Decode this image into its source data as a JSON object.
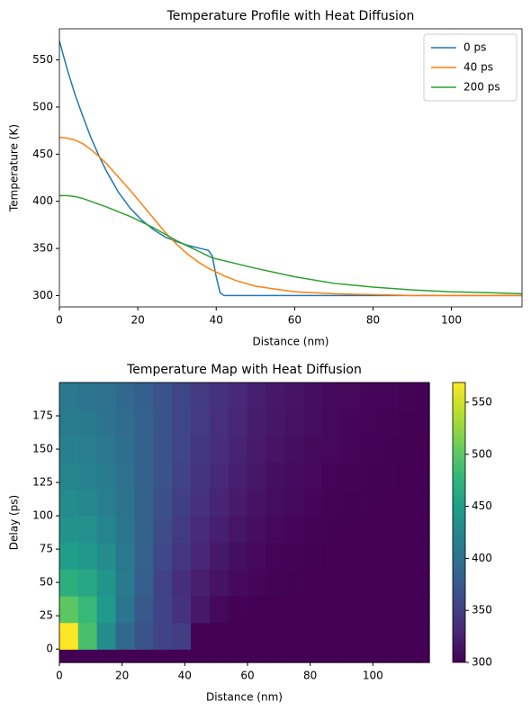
{
  "chart_data": [
    {
      "type": "line",
      "title": "Temperature Profile with Heat Diffusion",
      "x_label": "Distance (nm)",
      "y_label": "Temperature (K)",
      "x": [
        0,
        2,
        4,
        6,
        8,
        10,
        12,
        15,
        18,
        21,
        24,
        27,
        30,
        33,
        36,
        38,
        39,
        40,
        41,
        42,
        45,
        50,
        60,
        70,
        80,
        90,
        100,
        110,
        118
      ],
      "series": [
        {
          "name": "0 ps",
          "color": "#1f77b4",
          "values": [
            570,
            540,
            513,
            490,
            468,
            449,
            432,
            410,
            393,
            380,
            370,
            362,
            357,
            353,
            350,
            348,
            342,
            320,
            303,
            300,
            300,
            300,
            300,
            300,
            300,
            300,
            300,
            300,
            300
          ]
        },
        {
          "name": "40 ps",
          "color": "#ff7f0e",
          "values": [
            468,
            467,
            465,
            461,
            455,
            448,
            440,
            426,
            412,
            397,
            382,
            367,
            354,
            343,
            334,
            329,
            327,
            325,
            323,
            321,
            316,
            310,
            304,
            302,
            301,
            300,
            300,
            300,
            300
          ]
        },
        {
          "name": "200 ps",
          "color": "#2ca02c",
          "values": [
            406,
            406,
            405,
            403,
            400,
            397,
            394,
            389,
            384,
            378,
            372,
            365,
            358,
            352,
            346,
            342,
            340,
            339,
            338,
            337,
            334,
            329,
            320,
            313,
            309,
            306,
            304,
            303,
            302
          ]
        }
      ],
      "xlim": [
        0,
        118
      ],
      "ylim": [
        288,
        583
      ],
      "xticks": [
        0,
        20,
        40,
        60,
        80,
        100
      ],
      "yticks": [
        300,
        350,
        400,
        450,
        500,
        550
      ],
      "legend": "upper right"
    },
    {
      "type": "heatmap",
      "title": "Temperature Map with Heat Diffusion",
      "x_label": "Distance (nm)",
      "y_label": "Delay (ps)",
      "colormap": "viridis",
      "x": [
        0,
        6,
        12,
        18,
        24,
        30,
        36,
        42,
        48,
        54,
        60,
        66,
        72,
        78,
        84,
        90,
        96,
        102,
        108,
        114
      ],
      "y": [
        -10,
        0,
        20,
        40,
        60,
        80,
        100,
        120,
        140,
        160,
        180
      ],
      "z": [
        [
          300,
          300,
          300,
          300,
          300,
          300,
          300,
          300,
          300,
          300,
          300,
          300,
          300,
          300,
          300,
          300,
          300,
          300,
          300,
          300
        ],
        [
          570,
          490,
          430,
          390,
          368,
          355,
          350,
          300,
          300,
          300,
          300,
          300,
          300,
          300,
          300,
          300,
          300,
          300,
          300,
          300
        ],
        [
          500,
          480,
          445,
          405,
          375,
          355,
          338,
          318,
          306,
          301,
          300,
          300,
          300,
          300,
          300,
          300,
          300,
          300,
          300,
          300
        ],
        [
          468,
          460,
          440,
          410,
          380,
          355,
          335,
          322,
          313,
          307,
          304,
          302,
          301,
          300,
          300,
          300,
          300,
          300,
          300,
          300
        ],
        [
          450,
          444,
          430,
          408,
          383,
          360,
          342,
          328,
          318,
          311,
          306,
          303,
          302,
          301,
          300,
          300,
          300,
          300,
          300,
          300
        ],
        [
          438,
          434,
          422,
          405,
          385,
          364,
          347,
          333,
          323,
          315,
          310,
          306,
          304,
          302,
          301,
          300,
          300,
          300,
          300,
          300
        ],
        [
          430,
          426,
          416,
          402,
          385,
          367,
          351,
          338,
          327,
          319,
          313,
          309,
          306,
          304,
          302,
          301,
          301,
          300,
          300,
          300
        ],
        [
          423,
          420,
          411,
          400,
          385,
          369,
          354,
          341,
          331,
          323,
          316,
          311,
          308,
          305,
          303,
          302,
          301,
          301,
          300,
          300
        ],
        [
          417,
          414,
          407,
          397,
          384,
          370,
          356,
          344,
          334,
          326,
          319,
          314,
          310,
          307,
          305,
          303,
          302,
          301,
          301,
          300
        ],
        [
          412,
          410,
          403,
          394,
          383,
          370,
          357,
          346,
          336,
          328,
          321,
          316,
          312,
          309,
          306,
          304,
          303,
          302,
          301,
          301
        ],
        [
          409,
          406,
          400,
          391,
          381,
          369,
          357,
          347,
          338,
          330,
          323,
          318,
          314,
          310,
          307,
          305,
          304,
          303,
          302,
          301
        ]
      ],
      "xlim": [
        0,
        118
      ],
      "ylim": [
        -10,
        200
      ],
      "xticks": [
        0,
        20,
        40,
        60,
        80,
        100
      ],
      "yticks": [
        0,
        25,
        50,
        75,
        100,
        125,
        150,
        175
      ],
      "clim": [
        300,
        569
      ],
      "cticks": [
        300,
        350,
        400,
        450,
        500,
        550
      ]
    }
  ]
}
